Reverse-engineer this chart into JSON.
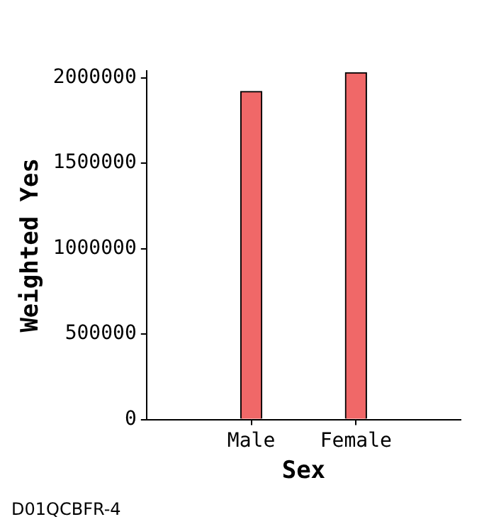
{
  "chart_data": {
    "type": "bar",
    "categories": [
      "Male",
      "Female"
    ],
    "values": [
      1920000,
      2030000
    ],
    "color": "#f06868",
    "xlabel": "Sex",
    "ylabel": "Weighted Yes",
    "ylim": [
      0,
      2040000
    ],
    "yticks": [
      0,
      500000,
      1000000,
      1500000,
      2000000
    ],
    "grid": false,
    "legend": false,
    "annotations": [
      "D01QCBFR-4"
    ]
  }
}
